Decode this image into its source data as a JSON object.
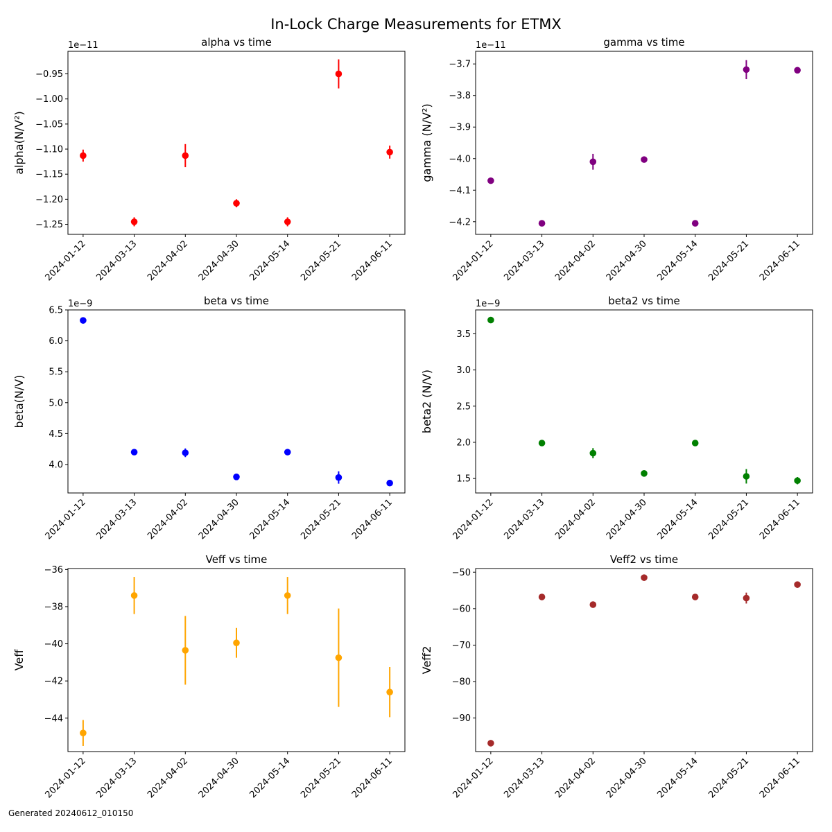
{
  "suptitle": "In-Lock Charge Measurements for ETMX",
  "footer": "Generated 20240612_010150",
  "chart_data": [
    {
      "type": "scatter",
      "title": "alpha vs time",
      "ylabel": "alpha(N/V²)",
      "offset_label": "1e−11",
      "color": "#ff0000",
      "categories": [
        "2024-01-12",
        "2024-03-13",
        "2024-04-02",
        "2024-04-30",
        "2024-05-14",
        "2024-05-21",
        "2024-06-11"
      ],
      "values": [
        -1.113,
        -1.245,
        -1.113,
        -1.208,
        -1.245,
        -0.95,
        -1.106
      ],
      "errors": [
        0.012,
        0.009,
        0.023,
        0.008,
        0.009,
        0.029,
        0.013
      ],
      "ylim": [
        -1.27,
        -0.905
      ],
      "yticks": [
        -1.25,
        -1.2,
        -1.15,
        -1.1,
        -1.05,
        -1.0,
        -0.95
      ],
      "ytick_labels": [
        "−1.25",
        "−1.20",
        "−1.15",
        "−1.10",
        "−1.05",
        "−1.00",
        "−0.95"
      ],
      "grid": false
    },
    {
      "type": "scatter",
      "title": "gamma vs time",
      "ylabel": "gamma (N/V²)",
      "offset_label": "1e−11",
      "color": "#800080",
      "categories": [
        "2024-01-12",
        "2024-03-13",
        "2024-04-02",
        "2024-04-30",
        "2024-05-14",
        "2024-05-21",
        "2024-06-11"
      ],
      "values": [
        -4.07,
        -4.205,
        -4.01,
        -4.003,
        -4.205,
        -3.718,
        -3.72
      ],
      "errors": [
        0.008,
        0.005,
        0.025,
        0.006,
        0.006,
        0.03,
        0.01
      ],
      "ylim": [
        -4.24,
        -3.66
      ],
      "yticks": [
        -4.2,
        -4.1,
        -4.0,
        -3.9,
        -3.8,
        -3.7
      ],
      "ytick_labels": [
        "−4.2",
        "−4.1",
        "−4.0",
        "−3.9",
        "−3.8",
        "−3.7"
      ],
      "grid": false
    },
    {
      "type": "scatter",
      "title": "beta vs time",
      "ylabel": "beta(N/V)",
      "offset_label": "1e−9",
      "color": "#0000ff",
      "categories": [
        "2024-01-12",
        "2024-03-13",
        "2024-04-02",
        "2024-04-30",
        "2024-05-14",
        "2024-05-21",
        "2024-06-11"
      ],
      "values": [
        6.33,
        4.2,
        4.19,
        3.8,
        4.2,
        3.79,
        3.7
      ],
      "errors": [
        0.01,
        0.01,
        0.07,
        0.01,
        0.01,
        0.1,
        0.01
      ],
      "ylim": [
        3.54,
        6.5
      ],
      "yticks": [
        4.0,
        4.5,
        5.0,
        5.5,
        6.0,
        6.5
      ],
      "ytick_labels": [
        "4.0",
        "4.5",
        "5.0",
        "5.5",
        "6.0",
        "6.5"
      ],
      "grid": false
    },
    {
      "type": "scatter",
      "title": "beta2 vs time",
      "ylabel": "beta2 (N/V)",
      "offset_label": "1e−9",
      "color": "#008000",
      "categories": [
        "2024-01-12",
        "2024-03-13",
        "2024-04-02",
        "2024-04-30",
        "2024-05-14",
        "2024-05-21",
        "2024-06-11"
      ],
      "values": [
        3.69,
        1.99,
        1.85,
        1.57,
        1.99,
        1.53,
        1.47
      ],
      "errors": [
        0.01,
        0.01,
        0.07,
        0.01,
        0.01,
        0.1,
        0.05
      ],
      "ylim": [
        1.3,
        3.83
      ],
      "yticks": [
        1.5,
        2.0,
        2.5,
        3.0,
        3.5
      ],
      "ytick_labels": [
        "1.5",
        "2.0",
        "2.5",
        "3.0",
        "3.5"
      ],
      "grid": false
    },
    {
      "type": "scatter",
      "title": "Veff vs time",
      "ylabel": "Veff",
      "offset_label": "",
      "color": "#ffa500",
      "categories": [
        "2024-01-12",
        "2024-03-13",
        "2024-04-02",
        "2024-04-30",
        "2024-05-14",
        "2024-05-21",
        "2024-06-11"
      ],
      "values": [
        -44.8,
        -37.4,
        -40.35,
        -39.95,
        -37.4,
        -40.75,
        -42.6
      ],
      "errors": [
        0.7,
        1.0,
        1.85,
        0.8,
        1.0,
        2.65,
        1.35
      ],
      "ylim": [
        -45.8,
        -35.95
      ],
      "yticks": [
        -44,
        -42,
        -40,
        -38,
        -36
      ],
      "ytick_labels": [
        "−44",
        "−42",
        "−40",
        "−38",
        "−36"
      ],
      "grid": false
    },
    {
      "type": "scatter",
      "title": "Veff2 vs time",
      "ylabel": "Veff2",
      "offset_label": "",
      "color": "#a52a2a",
      "categories": [
        "2024-01-12",
        "2024-03-13",
        "2024-04-02",
        "2024-04-30",
        "2024-05-14",
        "2024-05-21",
        "2024-06-11"
      ],
      "values": [
        -96.9,
        -56.8,
        -58.9,
        -51.5,
        -56.8,
        -57.1,
        -53.4
      ],
      "errors": [
        0.3,
        0.3,
        0.8,
        0.3,
        0.3,
        1.5,
        0.3
      ],
      "ylim": [
        -99.2,
        -49.0
      ],
      "yticks": [
        -90,
        -80,
        -70,
        -60,
        -50
      ],
      "ytick_labels": [
        "−90",
        "−80",
        "−70",
        "−60",
        "−50"
      ],
      "grid": false
    }
  ]
}
